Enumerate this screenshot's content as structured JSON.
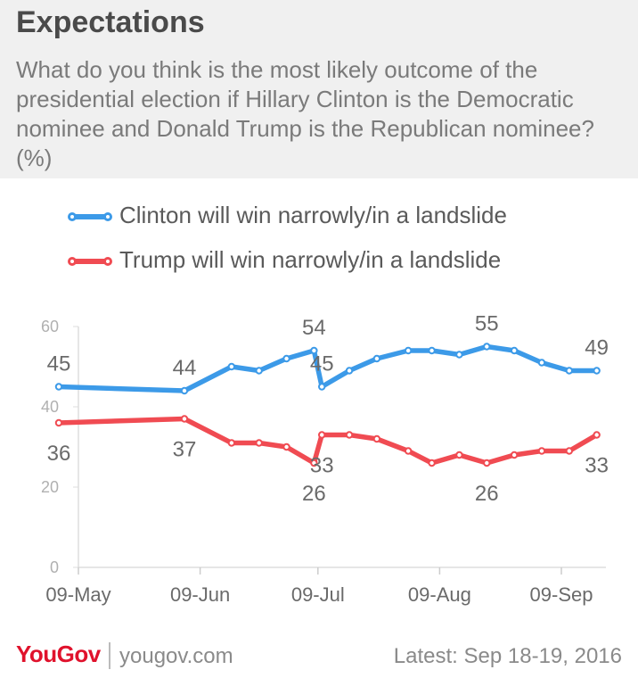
{
  "header": {
    "title": "Expectations",
    "subtitle": "What do you think is the most likely outcome of the presidential election if Hillary Clinton is the Democratic nominee and Donald Trump is the Republican nominee? (%)"
  },
  "legend": [
    {
      "label": "Clinton will win narrowly/in a landslide",
      "color": "#3c9ae8"
    },
    {
      "label": "Trump will win narrowly/in a landslide",
      "color": "#f04b52"
    }
  ],
  "chart_data": {
    "type": "line",
    "title": "Expectations",
    "xlabel": "",
    "ylabel": "",
    "ylim": [
      0,
      60
    ],
    "yticks": [
      0,
      20,
      40,
      60
    ],
    "x_ticks": [
      "09-May",
      "09-Jun",
      "09-Jul",
      "09-Aug",
      "09-Sep"
    ],
    "x": [
      "2016-05-04",
      "2016-06-05",
      "2016-06-17",
      "2016-06-24",
      "2016-07-01",
      "2016-07-08",
      "2016-07-10",
      "2016-07-17",
      "2016-07-24",
      "2016-08-01",
      "2016-08-07",
      "2016-08-14",
      "2016-08-21",
      "2016-08-28",
      "2016-09-04",
      "2016-09-11",
      "2016-09-18"
    ],
    "series": [
      {
        "name": "Clinton will win narrowly/in a landslide",
        "color": "#3c9ae8",
        "values": [
          45,
          44,
          50,
          49,
          52,
          54,
          45,
          49,
          52,
          54,
          54,
          53,
          55,
          54,
          51,
          49,
          49
        ],
        "labels": [
          {
            "index": 0,
            "text": "45",
            "pos": "above"
          },
          {
            "index": 1,
            "text": "44",
            "pos": "above"
          },
          {
            "index": 5,
            "text": "54",
            "pos": "above"
          },
          {
            "index": 6,
            "text": "45",
            "pos": "above"
          },
          {
            "index": 12,
            "text": "55",
            "pos": "above"
          },
          {
            "index": 16,
            "text": "49",
            "pos": "above"
          }
        ]
      },
      {
        "name": "Trump will win narrowly/in a landslide",
        "color": "#f04b52",
        "values": [
          36,
          37,
          31,
          31,
          30,
          26,
          33,
          33,
          32,
          29,
          26,
          28,
          26,
          28,
          29,
          29,
          33
        ],
        "labels": [
          {
            "index": 0,
            "text": "36",
            "pos": "below"
          },
          {
            "index": 1,
            "text": "37",
            "pos": "below"
          },
          {
            "index": 5,
            "text": "26",
            "pos": "below"
          },
          {
            "index": 6,
            "text": "33",
            "pos": "below"
          },
          {
            "index": 12,
            "text": "26",
            "pos": "below"
          },
          {
            "index": 16,
            "text": "33",
            "pos": "below"
          }
        ]
      }
    ]
  },
  "footer": {
    "logo": "YouGov",
    "site": "yougov.com",
    "latest": "Latest: Sep 18-19, 2016"
  }
}
